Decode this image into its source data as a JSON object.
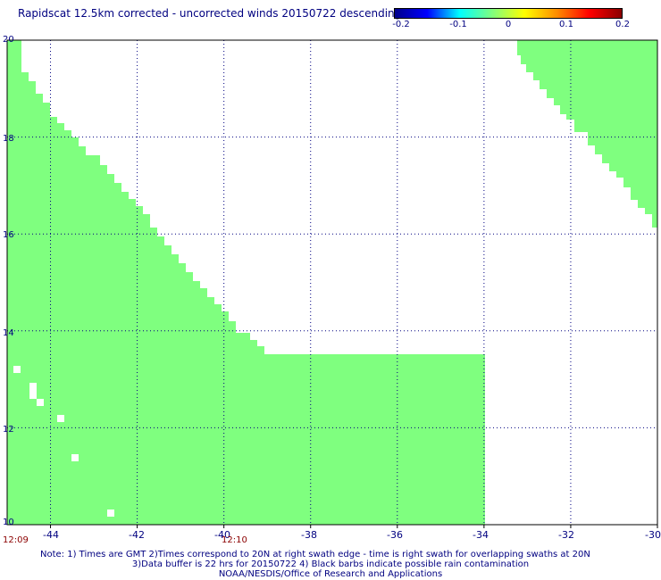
{
  "title": "Rapidscat 12.5km corrected - uncorrected winds 20150722 descending",
  "colorbar": {
    "labels": [
      "-0.2",
      "-0.1",
      "0",
      "0.1",
      "0.2"
    ],
    "min": -0.2,
    "max": 0.2,
    "colors": [
      "#00008b",
      "#0000ff",
      "#00ffff",
      "#7fff7f",
      "#ffff00",
      "#ff8c00",
      "#ff0000",
      "#8b0000"
    ]
  },
  "map": {
    "lon_range": [
      -45,
      -30
    ],
    "lat_range": [
      10,
      20
    ],
    "lat_ticks": [
      "20",
      "18",
      "16",
      "14",
      "12",
      "10"
    ],
    "lon_ticks": [
      "-44",
      "-42",
      "-40",
      "-38",
      "-36",
      "-34",
      "-32",
      "-30"
    ],
    "fill_color": "#7fff7f",
    "grid_color": "#000080"
  },
  "times": {
    "left": "12:09",
    "mid": "12:10"
  },
  "notes": {
    "line1": "Note: 1) Times are GMT 2)Times correspond to 20N at right swath edge - time is right swath for overlapping swaths at 20N",
    "line2": "3)Data buffer is 22 hrs for 20150722 4) Black barbs indicate possible rain contamination",
    "line3": "NOAA/NESDIS/Office of Research and Applications"
  }
}
